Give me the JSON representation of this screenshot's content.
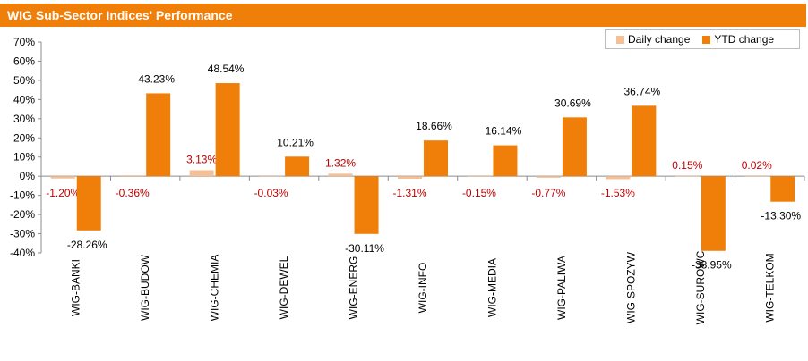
{
  "title": "WIG Sub-Sector Indices' Performance",
  "colors": {
    "daily": "#f5c095",
    "ytd": "#f07f09",
    "header": "#f07f09",
    "daily_label": "#c00000",
    "ytd_label": "#000000"
  },
  "chart_data": {
    "type": "bar",
    "title": "WIG Sub-Sector Indices' Performance",
    "categories": [
      "WIG-BANKI",
      "WIG-BUDOW",
      "WIG-CHEMIA",
      "WIG-DEWEL",
      "WIG-ENERG",
      "WIG-INFO",
      "WIG-MEDIA",
      "WIG-PALIWA",
      "WIG-SPOZYW",
      "WIG-SUROWC",
      "WIG-TELKOM"
    ],
    "series": [
      {
        "name": "Daily change",
        "values": [
          -1.2,
          -0.36,
          3.13,
          -0.03,
          1.32,
          -1.31,
          -0.15,
          -0.77,
          -1.53,
          0.15,
          0.02
        ],
        "labels": [
          "-1.20%",
          "-0.36%",
          "3.13%",
          "-0.03%",
          "1.32%",
          "-1.31%",
          "-0.15%",
          "-0.77%",
          "-1.53%",
          "0.15%",
          "0.02%"
        ]
      },
      {
        "name": "YTD change",
        "values": [
          -28.26,
          43.23,
          48.54,
          10.21,
          -30.11,
          18.66,
          16.14,
          30.69,
          36.74,
          -38.95,
          -13.3
        ],
        "labels": [
          "-28.26%",
          "43.23%",
          "48.54%",
          "10.21%",
          "-30.11%",
          "18.66%",
          "16.14%",
          "30.69%",
          "36.74%",
          "-38.95%",
          "-13.30%"
        ]
      }
    ],
    "yticks": [
      "70%",
      "60%",
      "50%",
      "40%",
      "30%",
      "20%",
      "10%",
      "0%",
      "-10%",
      "-20%",
      "-30%",
      "-40%"
    ],
    "ylim": [
      -40,
      70
    ],
    "legend_position": "top-right",
    "grid": false
  }
}
